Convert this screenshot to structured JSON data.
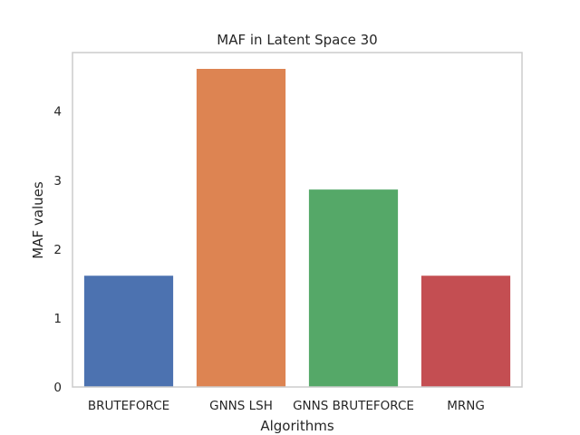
{
  "chart_data": {
    "type": "bar",
    "title": "MAF in Latent Space 30",
    "xlabel": "Algorithms",
    "ylabel": "MAF values",
    "categories": [
      "BRUTEFORCE",
      "GNNS LSH",
      "GNNS BRUTEFORCE",
      "MRNG"
    ],
    "values": [
      1.62,
      4.62,
      2.87,
      1.62
    ],
    "colors": [
      "#4c72b0",
      "#dd8452",
      "#55a868",
      "#c44e52"
    ],
    "ylim": [
      0,
      4.85
    ],
    "yticks": [
      0,
      1,
      2,
      3,
      4
    ],
    "grid": false,
    "legend": "none"
  }
}
